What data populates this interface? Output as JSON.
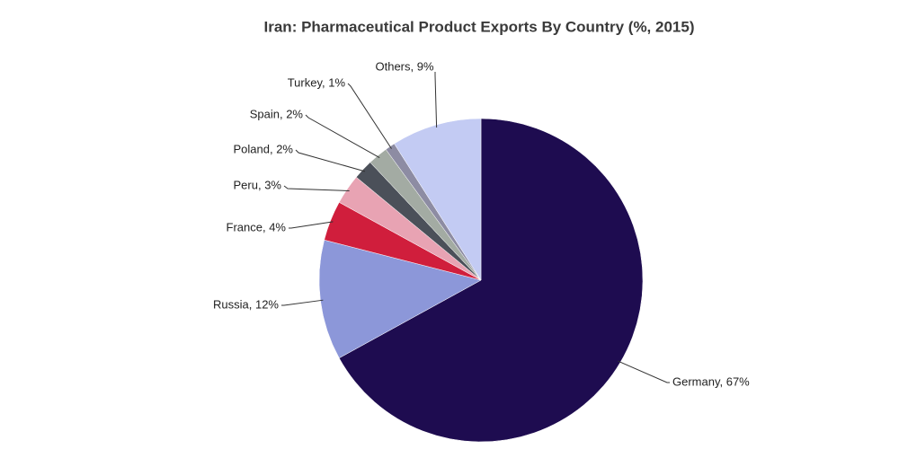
{
  "chart_data": {
    "type": "pie",
    "title": "Iran: Pharmaceutical Product Exports By Country (%, 2015)",
    "values": [
      67,
      12,
      4,
      3,
      2,
      2,
      1,
      9
    ],
    "value_labels": [
      "Germany, 67%",
      "Russia, 12%",
      "France, 4%",
      "Peru, 3%",
      "Poland, 2%",
      "Spain, 2%",
      "Turkey, 1%",
      "Others, 9%"
    ],
    "colors": [
      "#1e0c50",
      "#8c97d9",
      "#d01e3c",
      "#e8a3b3",
      "#4b5059",
      "#a3aba3",
      "#8d8ca3",
      "#c3cbf3"
    ]
  }
}
